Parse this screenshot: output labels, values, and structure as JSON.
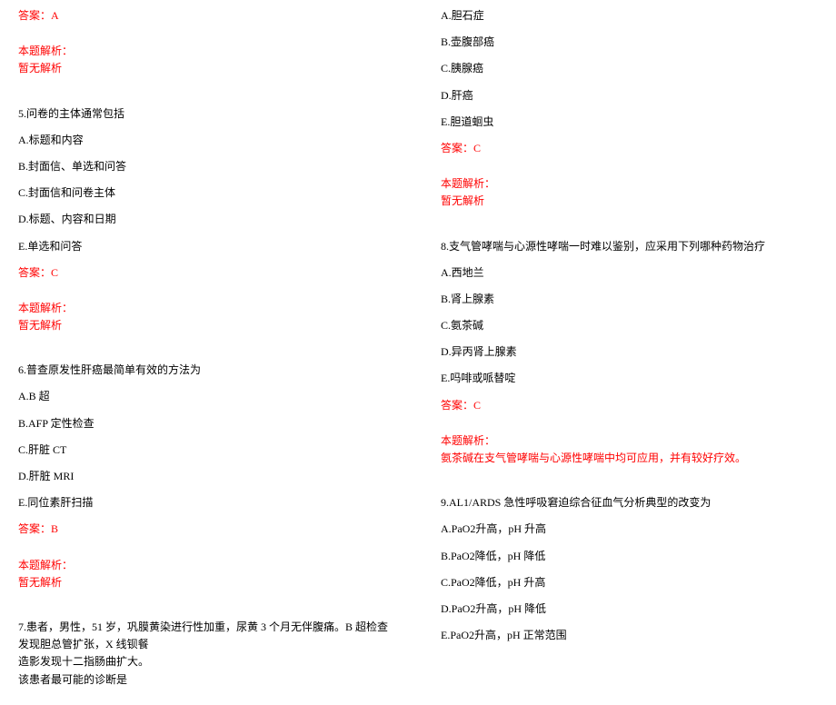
{
  "colors": {
    "text": "#000000",
    "answer": "#ff0000",
    "background": "#ffffff"
  },
  "typography": {
    "font_family": "SimSun",
    "font_size_pt": 9
  },
  "left": {
    "ans4": "答案：A",
    "exp_label4": "本题解析：",
    "exp4": "暂无解析",
    "q5": "5.问卷的主体通常包括",
    "q5a": "A.标题和内容",
    "q5b": "B.封面信、单选和问答",
    "q5c": "C.封面信和问卷主体",
    "q5d": "D.标题、内容和日期",
    "q5e": "E.单选和问答",
    "ans5": "答案：C",
    "exp_label5": "本题解析：",
    "exp5": "暂无解析",
    "q6": "6.普查原发性肝癌最简单有效的方法为",
    "q6a": "A.B 超",
    "q6b": "B.AFP 定性检查",
    "q6c": "C.肝脏 CT",
    "q6d": "D.肝脏 MRI",
    "q6e": "E.同位素肝扫描",
    "ans6": "答案：B",
    "exp_label6": "本题解析：",
    "exp6": "暂无解析",
    "q7a": "7.患者，男性，51 岁，巩膜黄染进行性加重，尿黄 3 个月无伴腹痛。B 超检查发现胆总管扩张，X 线钡餐",
    "q7b": "造影发现十二指肠曲扩大。",
    "q7c": "该患者最可能的诊断是"
  },
  "right": {
    "q7_a": "A.胆石症",
    "q7_b": "B.壶腹部癌",
    "q7_c": "C.胰腺癌",
    "q7_d": "D.肝癌",
    "q7_e": "E.胆道蛔虫",
    "ans7": "答案：C",
    "exp_label7": "本题解析：",
    "exp7": "暂无解析",
    "q8": "8.支气管哮喘与心源性哮喘一时难以鉴别，应采用下列哪种药物治疗",
    "q8a": "A.西地兰",
    "q8b": "B.肾上腺素",
    "q8c": "C.氨茶碱",
    "q8d": "D.异丙肾上腺素",
    "q8e": "E.吗啡或哌替啶",
    "ans8": "答案：C",
    "exp_label8": "本题解析：",
    "exp8": "氨茶碱在支气管哮喘与心源性哮喘中均可应用，并有较好疗效。",
    "q9": "9.AL1/ARDS 急性呼吸窘迫综合征血气分析典型的改变为",
    "q9a": "A.PaO2升高，pH 升高",
    "q9b": "B.PaO2降低，pH 降低",
    "q9c": "C.PaO2降低，pH 升高",
    "q9d": "D.PaO2升高，pH 降低",
    "q9e": "E.PaO2升高，pH 正常范围"
  }
}
